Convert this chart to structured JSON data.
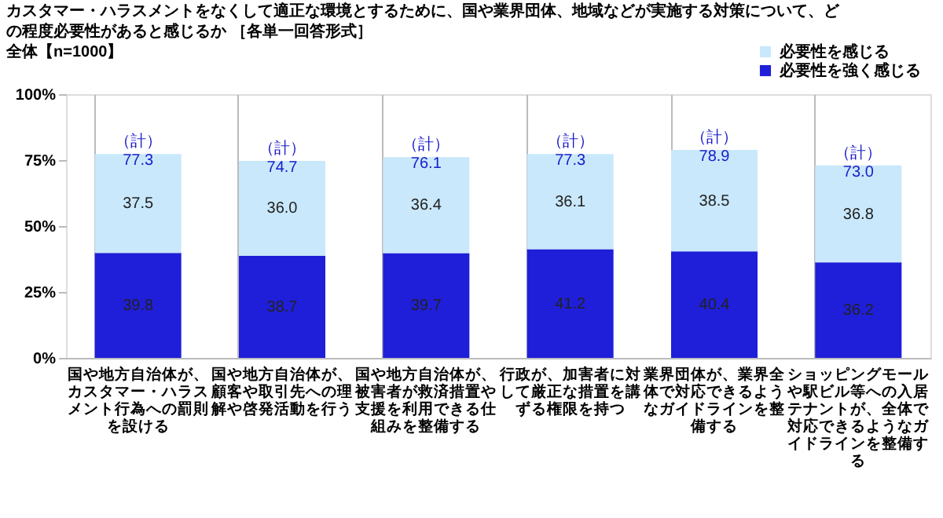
{
  "chart_data": {
    "type": "bar",
    "stacked": true,
    "title": "カスタマー・ハラスメントをなくして適正な環境とするために、国や業界団体、地域などが実施する対策について、どの程度必要性があると感じるか ［各単一回答形式］",
    "subtitle": "全体【n=1000】",
    "categories": [
      "国や地方自治体が、カスタマー・ハラスメント行為への罰則を設ける",
      "国や地方自治体が、顧客や取引先への理解や啓発活動を行う",
      "国や地方自治体が、被害者が救済措置や支援を利用できる仕組みを整備する",
      "行政が、加害者に対して厳正な措置を講ずる権限を持つ",
      "業界団体が、業界全体で対応できるようなガイドラインを整備する",
      "ショッピングモールや駅ビル等への入居テナントが、全体で対応できるようなガイドラインを整備する"
    ],
    "series": [
      {
        "name": "必要性を強く感じる",
        "color": "#1f1fd9",
        "values": [
          39.8,
          38.7,
          39.7,
          41.2,
          40.4,
          36.2
        ],
        "value_labels": [
          "39.8",
          "38.7",
          "39.7",
          "41.2",
          "40.4",
          "36.2"
        ]
      },
      {
        "name": "必要性を感じる",
        "color": "#c9e8fb",
        "values": [
          37.5,
          36.0,
          36.4,
          36.1,
          38.5,
          36.8
        ],
        "value_labels": [
          "37.5",
          "36.0",
          "36.4",
          "36.1",
          "38.5",
          "36.8"
        ]
      }
    ],
    "totals": [
      "（計）\n77.3",
      "（計）\n74.7",
      "（計）\n76.1",
      "（計）\n77.3",
      "（計）\n78.9",
      "（計）\n73.0"
    ],
    "ylim": [
      0,
      100
    ],
    "yticks": [
      {
        "value": 0,
        "label": "0%"
      },
      {
        "value": 25,
        "label": "25%"
      },
      {
        "value": 50,
        "label": "50%"
      },
      {
        "value": 75,
        "label": "75%"
      },
      {
        "value": 100,
        "label": "100%"
      }
    ],
    "grid": "x",
    "legend": "top right"
  }
}
